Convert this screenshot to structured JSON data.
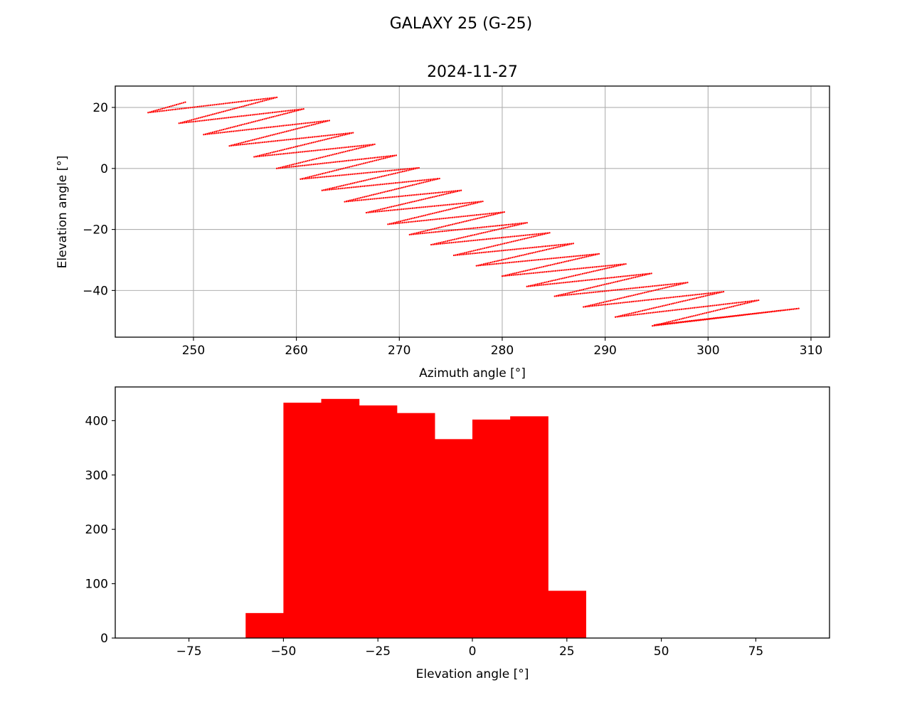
{
  "figure": {
    "suptitle": "GALAXY 25 (G-25)"
  },
  "colors": {
    "data": "#ff0000",
    "grid": "#b0b0b0",
    "axes": "#000000",
    "background": "#ffffff"
  },
  "chart_data": [
    {
      "type": "scatter",
      "title": "2024-11-27",
      "xlabel": "Azimuth angle [°]",
      "ylabel": "Elevation angle [°]",
      "xlim": [
        242.4,
        311.8
      ],
      "ylim": [
        -55.3,
        27.0
      ],
      "xticks": [
        250,
        260,
        270,
        280,
        290,
        300,
        310
      ],
      "yticks": [
        -40,
        -20,
        0,
        20
      ],
      "xtick_labels": [
        "250",
        "260",
        "270",
        "280",
        "290",
        "300",
        "310"
      ],
      "ytick_labels": [
        "−40",
        "−20",
        "0",
        "20"
      ],
      "grid": true,
      "marker": "dot",
      "polyline_vertices": [
        [
          249.2,
          21.7
        ],
        [
          245.6,
          18.3
        ],
        [
          258.1,
          23.3
        ],
        [
          248.6,
          14.8
        ],
        [
          260.7,
          19.5
        ],
        [
          251.0,
          11.1
        ],
        [
          263.2,
          15.7
        ],
        [
          253.5,
          7.4
        ],
        [
          265.5,
          11.7
        ],
        [
          255.9,
          3.8
        ],
        [
          267.6,
          7.9
        ],
        [
          258.1,
          0.0
        ],
        [
          269.7,
          4.3
        ],
        [
          260.4,
          -3.5
        ],
        [
          271.9,
          0.2
        ],
        [
          262.5,
          -7.2
        ],
        [
          273.9,
          -3.3
        ],
        [
          264.7,
          -10.9
        ],
        [
          276.0,
          -7.2
        ],
        [
          266.8,
          -14.5
        ],
        [
          278.1,
          -10.8
        ],
        [
          268.9,
          -18.3
        ],
        [
          280.2,
          -14.3
        ],
        [
          271.0,
          -21.7
        ],
        [
          282.4,
          -17.8
        ],
        [
          273.1,
          -25.0
        ],
        [
          284.6,
          -21.1
        ],
        [
          275.3,
          -28.5
        ],
        [
          286.9,
          -24.6
        ],
        [
          277.5,
          -31.9
        ],
        [
          289.4,
          -28.0
        ],
        [
          280.0,
          -35.3
        ],
        [
          292.0,
          -31.3
        ],
        [
          282.4,
          -38.7
        ],
        [
          294.5,
          -34.4
        ],
        [
          285.1,
          -41.9
        ],
        [
          298.0,
          -37.4
        ],
        [
          287.9,
          -45.4
        ],
        [
          301.5,
          -40.4
        ],
        [
          291.0,
          -48.7
        ],
        [
          304.9,
          -43.2
        ],
        [
          294.6,
          -51.6
        ],
        [
          308.8,
          -45.9
        ],
        [
          294.8,
          -51.3
        ]
      ]
    },
    {
      "type": "bar",
      "title": "",
      "xlabel": "Elevation angle [°]",
      "ylabel": "",
      "xlim": [
        -94.5,
        94.5
      ],
      "ylim": [
        0,
        462
      ],
      "xticks": [
        -75,
        -50,
        -25,
        0,
        25,
        50,
        75
      ],
      "yticks": [
        0,
        100,
        200,
        300,
        400
      ],
      "xtick_labels": [
        "−75",
        "−50",
        "−25",
        "0",
        "25",
        "50",
        "75"
      ],
      "ytick_labels": [
        "0",
        "100",
        "200",
        "300",
        "400"
      ],
      "grid": false,
      "bins": [
        {
          "from": -60,
          "to": -50,
          "value": 46
        },
        {
          "from": -50,
          "to": -40,
          "value": 433
        },
        {
          "from": -40,
          "to": -30,
          "value": 440
        },
        {
          "from": -30,
          "to": -20,
          "value": 428
        },
        {
          "from": -20,
          "to": -10,
          "value": 414
        },
        {
          "from": -10,
          "to": 0,
          "value": 366
        },
        {
          "from": 0,
          "to": 10,
          "value": 402
        },
        {
          "from": 10,
          "to": 20,
          "value": 408
        },
        {
          "from": 20,
          "to": 30,
          "value": 87
        }
      ]
    }
  ]
}
